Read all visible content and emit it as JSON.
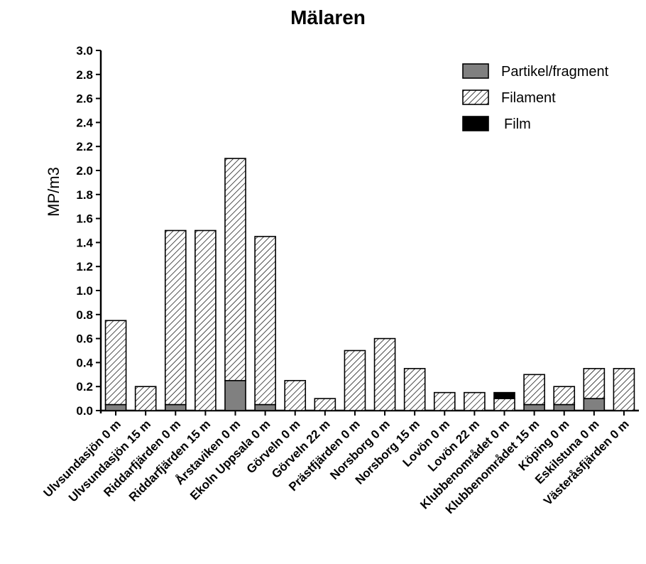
{
  "chart_data": {
    "type": "bar",
    "stacked": true,
    "title": "Mälaren",
    "xlabel": "",
    "ylabel": "MP/m3",
    "ylim": [
      0,
      3.0
    ],
    "yticks": [
      "0.0",
      "0.2",
      "0.4",
      "0.6",
      "0.8",
      "1.0",
      "1.2",
      "1.4",
      "1.6",
      "1.8",
      "2.0",
      "2.2",
      "2.4",
      "2.6",
      "2.8",
      "3.0"
    ],
    "categories": [
      "Ulvsundasjön 0 m",
      "Ulvsundasjön 15 m",
      "Riddarfjärden 0 m",
      "Riddarfjärden 15 m",
      "Årstaviken 0 m",
      "Ekoln Uppsala 0 m",
      "Görveln 0 m",
      "Görveln 22 m",
      "Prästfjärden 0 m",
      "Norsborg 0 m",
      "Norsborg 15 m",
      "Lovön 0 m",
      "Lovön 22 m",
      "Klubbenområdet 0 m",
      "Klubbenområdet 15 m",
      "Köping 0 m",
      "Eskilstuna 0 m",
      "Västeråsfjärden 0 m"
    ],
    "series": [
      {
        "name": "Partikel/fragment",
        "fill": "solid",
        "color": "#808080",
        "values": [
          0.05,
          0,
          0.05,
          0,
          0.25,
          0.05,
          0,
          0,
          0,
          0,
          0,
          0,
          0,
          0,
          0.05,
          0.05,
          0.1,
          0
        ]
      },
      {
        "name": "Filament",
        "fill": "hatch",
        "color": "#000000",
        "values": [
          0.7,
          0.2,
          1.45,
          1.5,
          1.85,
          1.4,
          0.25,
          0.1,
          0.5,
          0.6,
          0.35,
          0.15,
          0.15,
          0.1,
          0.25,
          0.15,
          0.25,
          0.35
        ]
      },
      {
        "name": "Film",
        "fill": "solid",
        "color": "#000000",
        "values": [
          0,
          0,
          0,
          0,
          0,
          0,
          0,
          0,
          0,
          0,
          0,
          0,
          0,
          0.05,
          0,
          0,
          0,
          0
        ]
      }
    ],
    "legend": "top-right",
    "grid": false
  }
}
